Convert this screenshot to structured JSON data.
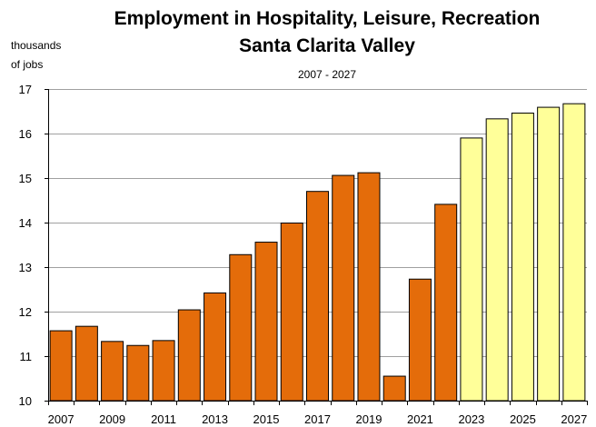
{
  "chart_data": {
    "type": "bar",
    "title_line1": "Employment in Hospitality, Leisure, Recreation",
    "title_line2": "Santa Clarita Valley",
    "subtitle": "2007 - 2027",
    "ylabel_line1": "thousands",
    "ylabel_line2": "of jobs",
    "xlabel": "",
    "ylim": [
      10,
      17
    ],
    "yticks": [
      10,
      11,
      12,
      13,
      14,
      15,
      16,
      17
    ],
    "grid": true,
    "categories": [
      "2007",
      "2008",
      "2009",
      "2010",
      "2011",
      "2012",
      "2013",
      "2014",
      "2015",
      "2016",
      "2017",
      "2018",
      "2019",
      "2020",
      "2021",
      "2022",
      "2023",
      "2024",
      "2025",
      "2026",
      "2027"
    ],
    "xtick_labels": [
      "2007",
      "2009",
      "2011",
      "2013",
      "2015",
      "2017",
      "2019",
      "2021",
      "2023",
      "2025",
      "2027"
    ],
    "values": [
      11.57,
      11.67,
      11.33,
      11.24,
      11.35,
      12.04,
      12.42,
      13.28,
      13.56,
      13.99,
      14.7,
      15.06,
      15.12,
      10.55,
      12.73,
      14.41,
      15.9,
      16.33,
      16.46,
      16.59,
      16.67
    ],
    "series": [
      {
        "name": "",
        "range": [
          "2007",
          "2022"
        ],
        "color": "#e46c0a"
      },
      {
        "name": "",
        "range": [
          "2023",
          "2027"
        ],
        "color": "#ffff99"
      }
    ]
  }
}
